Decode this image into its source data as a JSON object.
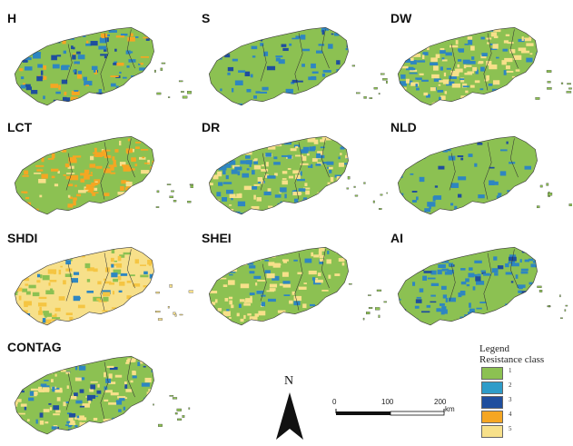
{
  "panels": [
    {
      "title": "H",
      "colors": [
        "#8cc152",
        "#2e86c1",
        "#1f4e9e",
        "#f5a623"
      ],
      "weights": [
        0.62,
        0.16,
        0.12,
        0.1
      ]
    },
    {
      "title": "S",
      "colors": [
        "#8cc152",
        "#2e86c1",
        "#1f4e9e"
      ],
      "weights": [
        0.78,
        0.16,
        0.06
      ]
    },
    {
      "title": "DW",
      "colors": [
        "#8cc152",
        "#2e86c1",
        "#f7e08a"
      ],
      "weights": [
        0.4,
        0.25,
        0.35
      ]
    },
    {
      "title": "LCT",
      "colors": [
        "#8cc152",
        "#f5a623",
        "#f7e08a"
      ],
      "weights": [
        0.55,
        0.35,
        0.1
      ]
    },
    {
      "title": "DR",
      "colors": [
        "#8cc152",
        "#2e86c1",
        "#f7e08a"
      ],
      "weights": [
        0.45,
        0.25,
        0.3
      ]
    },
    {
      "title": "NLD",
      "colors": [
        "#8cc152",
        "#2e86c1",
        "#1f4e9e"
      ],
      "weights": [
        0.85,
        0.1,
        0.05
      ]
    },
    {
      "title": "SHDI",
      "colors": [
        "#f7e08a",
        "#f5c542",
        "#8cc152",
        "#2e86c1"
      ],
      "weights": [
        0.6,
        0.25,
        0.1,
        0.05
      ]
    },
    {
      "title": "SHEI",
      "colors": [
        "#8cc152",
        "#f7e08a",
        "#2e86c1"
      ],
      "weights": [
        0.55,
        0.3,
        0.15
      ]
    },
    {
      "title": "AI",
      "colors": [
        "#8cc152",
        "#2e86c1",
        "#1f4e9e"
      ],
      "weights": [
        0.65,
        0.28,
        0.07
      ]
    },
    {
      "title": "CONTAG",
      "colors": [
        "#8cc152",
        "#f7e08a",
        "#2e86c1",
        "#1f4e9e"
      ],
      "weights": [
        0.5,
        0.3,
        0.15,
        0.05
      ]
    }
  ],
  "legend": {
    "title": "Legend",
    "subtitle": "Resistance class",
    "items": [
      {
        "label": "1",
        "color": "#8cc152"
      },
      {
        "label": "2",
        "color": "#2e9cc9"
      },
      {
        "label": "3",
        "color": "#1f4e9e"
      },
      {
        "label": "4",
        "color": "#f5a623"
      },
      {
        "label": "5",
        "color": "#f7e08a"
      }
    ]
  },
  "north_arrow": {
    "label": "N"
  },
  "scale_bar": {
    "ticks": [
      "0",
      "100",
      "200"
    ],
    "unit": "km"
  }
}
